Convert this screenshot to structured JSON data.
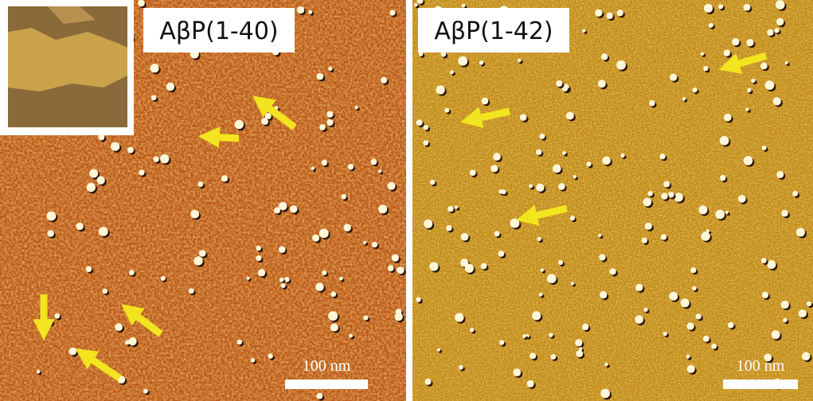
{
  "panels": [
    {
      "label": "AβP(1-40)",
      "scale_bar": "100 nm"
    },
    {
      "label": "AβP(1-42)",
      "scale_bar": "100 nm"
    }
  ]
}
